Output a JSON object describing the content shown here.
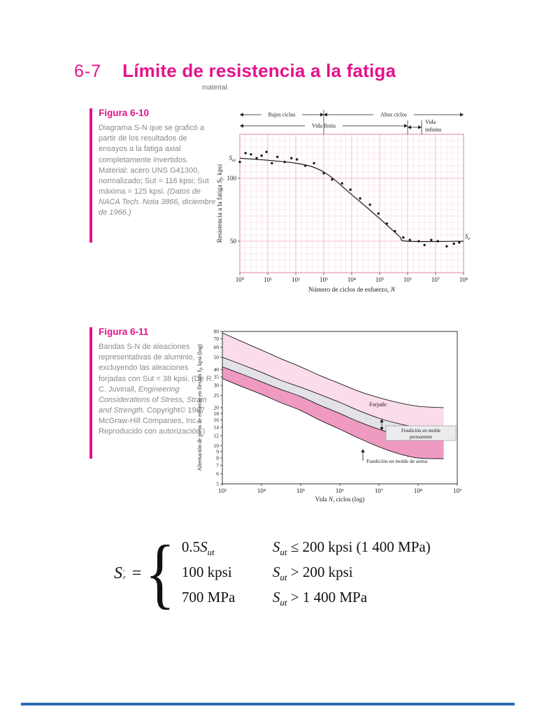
{
  "page": {
    "section_number": "6-7",
    "section_title": "Límite de resistencia a la fatiga",
    "fragment": "material."
  },
  "figure10": {
    "label": "Figura 6-10",
    "caption_body": "Diagrama S-N que se graficó a partir de los resultados de ensayos a la fatiga axial completamente invertidos. Material: acero UNS G41300, normalizado; Sut = 116 kpsi; Sut máxima = 125 kpsi. ",
    "caption_note": "(Datos de NACA Tech. Nota 3866, diciembre de 1966.)"
  },
  "figure11": {
    "label": "Figura 6-11",
    "caption_body": "Bandas S-N de aleaciones representativas de aluminio, excluyendo las aleaciones forjadas con Sut < 38 kpsi. ",
    "caption_note_pre": "(De R. C. Juvinall, ",
    "caption_note_italic": "Engineering Considerations of Stress, Strain and Strength.",
    "caption_note_post": " Copyright© 1967 McGraw-Hill Companies, Inc. Reproducido con autorización.)"
  },
  "chart_data": [
    {
      "type": "scatter",
      "figure": "6-10",
      "xlabel_parts": {
        "pre": "Número de ciclos de esfuerzo, ",
        "sym": "N"
      },
      "ylabel_parts": {
        "pre": "Resistencia a la fatiga ",
        "sym": "S",
        "sub": "f",
        "post": ", kpsi"
      },
      "x_scale": "log",
      "x_log_range": [
        0,
        8
      ],
      "x_tick_labels": [
        "10⁰",
        "10¹",
        "10²",
        "10³",
        "10⁴",
        "10⁵",
        "10⁶",
        "10⁷",
        "10⁸"
      ],
      "y_range": [
        25,
        135
      ],
      "y_ticks": [
        50,
        100
      ],
      "line": [
        [
          1,
          116
        ],
        [
          100,
          112
        ],
        [
          1000,
          105
        ],
        [
          10000,
          87
        ],
        [
          100000,
          68
        ],
        [
          500000,
          54
        ],
        [
          1000000,
          50
        ],
        [
          100000000,
          50
        ]
      ],
      "points": [
        [
          1,
          113
        ],
        [
          1.6,
          120
        ],
        [
          2.5,
          119
        ],
        [
          4,
          116
        ],
        [
          6,
          118
        ],
        [
          9,
          121
        ],
        [
          14,
          112
        ],
        [
          22,
          117
        ],
        [
          40,
          113
        ],
        [
          70,
          116
        ],
        [
          110,
          115
        ],
        [
          220,
          110
        ],
        [
          450,
          112
        ],
        [
          1000,
          104
        ],
        [
          2000,
          99
        ],
        [
          4500,
          96
        ],
        [
          9000,
          91
        ],
        [
          20000,
          84
        ],
        [
          45000,
          79
        ],
        [
          90000,
          72
        ],
        [
          180000,
          64
        ],
        [
          350000,
          58
        ],
        [
          700000,
          53
        ],
        [
          1200000,
          51
        ],
        [
          2500000,
          50
        ],
        [
          4000000,
          47
        ],
        [
          7000000,
          51
        ],
        [
          12000000,
          50
        ],
        [
          25000000,
          46
        ],
        [
          45000000,
          48
        ],
        [
          70000000,
          49
        ]
      ],
      "annotations": {
        "low_cycles": "Bajos ciclos",
        "high_cycles": "Altos ciclos",
        "finite_life": "Vida finita",
        "infinite_life_line1": "Vida",
        "infinite_life_line2": "infinita"
      },
      "boundaries": {
        "low_high": 1000,
        "finite_infinite": 1000000
      },
      "sut_label": {
        "sym": "S",
        "sub": "ut"
      },
      "sut_value": 116,
      "se_label": {
        "sym": "S",
        "sub": "e"
      },
      "se_value": 50
    },
    {
      "type": "area",
      "figure": "6-11",
      "xlabel_parts": {
        "pre": "Vida ",
        "sym": "N",
        "post": ", ciclos (log)"
      },
      "ylabel_parts": {
        "pre": "Alternación de picos de esfuerzo en flexión ",
        "sym": "S",
        "sub": "f",
        "post": ", kpsi (log)"
      },
      "x_scale": "log",
      "x_log_range": [
        3,
        9
      ],
      "x_tick_labels": [
        "10³",
        "10⁴",
        "10⁵",
        "10⁶",
        "10⁷",
        "10⁸",
        "10⁹"
      ],
      "y_scale": "log",
      "y_range": [
        5,
        80
      ],
      "y_ticks": [
        5,
        6,
        7,
        8,
        9,
        10,
        12,
        14,
        16,
        18,
        20,
        25,
        30,
        35,
        40,
        50,
        60,
        70,
        80
      ],
      "curves": [
        [
          [
            1000,
            78
          ],
          [
            3000,
            67
          ],
          [
            10000,
            57
          ],
          [
            30000,
            49
          ],
          [
            100000,
            42
          ],
          [
            300000,
            36
          ],
          [
            1000000,
            31
          ],
          [
            3000000,
            27
          ],
          [
            10000000,
            24
          ],
          [
            30000000,
            22
          ],
          [
            100000000,
            20.5
          ],
          [
            450000000,
            20
          ]
        ],
        [
          [
            1000,
            50
          ],
          [
            3000,
            44
          ],
          [
            10000,
            38
          ],
          [
            30000,
            33
          ],
          [
            100000,
            29
          ],
          [
            300000,
            25.5
          ],
          [
            1000000,
            22
          ],
          [
            3000000,
            19
          ],
          [
            10000000,
            16.5
          ],
          [
            30000000,
            15
          ],
          [
            100000000,
            14
          ],
          [
            450000000,
            13.8
          ]
        ],
        [
          [
            1000,
            42
          ],
          [
            3000,
            37
          ],
          [
            10000,
            32
          ],
          [
            30000,
            28
          ],
          [
            100000,
            24.5
          ],
          [
            300000,
            21
          ],
          [
            1000000,
            18
          ],
          [
            3000000,
            15.5
          ],
          [
            10000000,
            13.5
          ],
          [
            30000000,
            12.2
          ],
          [
            100000000,
            11.4
          ],
          [
            450000000,
            11.2
          ]
        ],
        [
          [
            1000,
            34
          ],
          [
            3000,
            29.5
          ],
          [
            10000,
            25.5
          ],
          [
            30000,
            22
          ],
          [
            100000,
            19
          ],
          [
            300000,
            16
          ],
          [
            1000000,
            13.5
          ],
          [
            3000000,
            11.5
          ],
          [
            10000000,
            9.8
          ],
          [
            30000000,
            8.7
          ],
          [
            100000000,
            8
          ],
          [
            450000000,
            7.9
          ]
        ]
      ],
      "bands": [
        {
          "label": "Forjado",
          "upper": 0,
          "lower": 1,
          "fill": "#fbdcea"
        },
        {
          "label": "Fundición en molde permanente",
          "label_lines": [
            "Fundición en molde",
            "permanente"
          ],
          "upper": 1,
          "lower": 2,
          "fill": "#e3e2e7"
        },
        {
          "label": "Fundición en molde de arena",
          "upper": 2,
          "lower": 3,
          "fill": "#ee9ac1"
        }
      ]
    }
  ],
  "equation": {
    "lhs": {
      "sym": "S",
      "sup": "′",
      "sub": "e",
      "eq": "="
    },
    "brace": "{",
    "rows": [
      {
        "pre": "0.5",
        "sym": "S",
        "sub": "ut",
        "csym": "S",
        "csub": "ut",
        "crest": " ≤ 200 kpsi (1 400 MPa)"
      },
      {
        "pre": "100 kpsi",
        "sym": "",
        "sub": "",
        "csym": "S",
        "csub": "ut",
        "crest": " > 200 kpsi"
      },
      {
        "pre": "700 MPa",
        "sym": "",
        "sub": "",
        "csym": "S",
        "csub": "ut",
        "crest": " > 1 400 MPa"
      }
    ]
  },
  "colors": {
    "accent_pink": "#e6118c",
    "caption_gray": "#8a8a8a",
    "grid_minor": "#fad4e4",
    "grid_major": "#f3a8c8",
    "plot_border": "#e78ab6",
    "band_wrought": "#fbdcea",
    "band_permanent": "#e3e2e7",
    "band_sand": "#ee9ac1",
    "rule_blue": "#2b6cb5",
    "ink": "#1a1a1a"
  }
}
